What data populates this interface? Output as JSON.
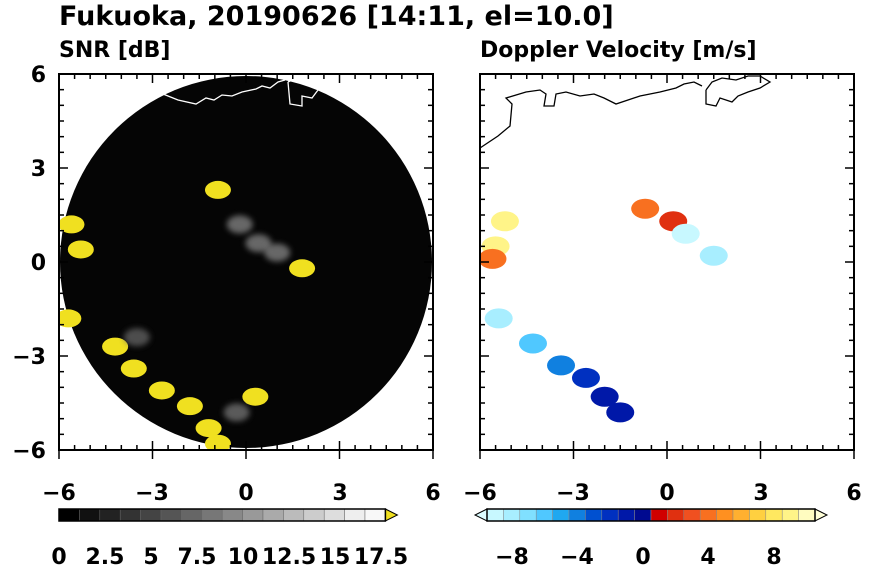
{
  "figure": {
    "title": "Fukuoka, 20190626 [14:11, el=10.0]"
  },
  "chart_data": [
    {
      "type": "heatmap",
      "title": "SNR [dB]",
      "xlabel": "",
      "ylabel": "",
      "xlim": [
        -6,
        6
      ],
      "ylim": [
        -6,
        6
      ],
      "xticks": [
        "−6",
        "−3",
        "0",
        "3",
        "6"
      ],
      "yticks": [
        "6",
        "3",
        "0",
        "−3",
        "−6"
      ],
      "range_circle_radius": 6,
      "colorbar": {
        "min": 0,
        "max": 18.75,
        "step": 1.25,
        "extend": "max",
        "tick_values": [
          0,
          2.5,
          5,
          7.5,
          10,
          12.5,
          15,
          17.5
        ],
        "tick_labels": [
          "0",
          "2.5",
          "5",
          "7.5",
          "10",
          "12.5",
          "15",
          "17.5"
        ],
        "colors": [
          "#000000",
          "#111111",
          "#222222",
          "#333333",
          "#444444",
          "#555555",
          "#666666",
          "#777777",
          "#888888",
          "#999999",
          "#aaaaaa",
          "#bbbbbb",
          "#cccccc",
          "#dddddd",
          "#eeeeee",
          "#f8f8f8"
        ],
        "extend_color": "#f0e020"
      },
      "echoes": [
        {
          "x": -5.6,
          "y": 1.2,
          "v": 19
        },
        {
          "x": -5.3,
          "y": 0.4,
          "v": 19
        },
        {
          "x": -5.7,
          "y": -1.8,
          "v": 19
        },
        {
          "x": -4.2,
          "y": -2.7,
          "v": 19
        },
        {
          "x": -3.6,
          "y": -3.4,
          "v": 19
        },
        {
          "x": -2.7,
          "y": -4.1,
          "v": 19
        },
        {
          "x": -1.8,
          "y": -4.6,
          "v": 19
        },
        {
          "x": -1.2,
          "y": -5.3,
          "v": 19
        },
        {
          "x": -0.9,
          "y": -5.8,
          "v": 19
        },
        {
          "x": 0.3,
          "y": -4.3,
          "v": 19
        },
        {
          "x": -0.9,
          "y": 2.3,
          "v": 19
        },
        {
          "x": 1.8,
          "y": -0.2,
          "v": 19
        },
        {
          "x": -0.2,
          "y": 1.2,
          "v": 11
        },
        {
          "x": 0.4,
          "y": 0.6,
          "v": 10
        },
        {
          "x": 1.0,
          "y": 0.3,
          "v": 11
        },
        {
          "x": -3.5,
          "y": -2.4,
          "v": 8
        },
        {
          "x": -0.3,
          "y": -4.8,
          "v": 9
        }
      ]
    },
    {
      "type": "heatmap",
      "title": "Doppler Velocity [m/s]",
      "xlabel": "",
      "ylabel": "",
      "xlim": [
        -6,
        6
      ],
      "ylim": [
        -6,
        6
      ],
      "xticks": [
        "−6",
        "−3",
        "0",
        "3",
        "6"
      ],
      "yticks": [],
      "colorbar": {
        "min": -10,
        "max": 10,
        "step": 1,
        "extend": "both",
        "tick_values": [
          -8,
          -4,
          0,
          4,
          8
        ],
        "tick_labels": [
          "−8",
          "−4",
          "0",
          "4",
          "8"
        ],
        "colors": [
          "#c8f8ff",
          "#a8eeff",
          "#80e0ff",
          "#50c8ff",
          "#20a8f0",
          "#1080e0",
          "#0050d0",
          "#0030c0",
          "#0018a8",
          "#000a90",
          "#d00000",
          "#e03010",
          "#f05020",
          "#f87020",
          "#ff9020",
          "#ffb030",
          "#ffd040",
          "#ffe860",
          "#fff488",
          "#fffcc0"
        ],
        "extend_low_color": "#dcfcff",
        "extend_high_color": "#ffffd8"
      },
      "echoes": [
        {
          "x": -5.2,
          "y": 1.3,
          "v": 8.5
        },
        {
          "x": -5.5,
          "y": 0.5,
          "v": 8
        },
        {
          "x": -5.6,
          "y": 0.1,
          "v": 3
        },
        {
          "x": -0.7,
          "y": 1.7,
          "v": 3
        },
        {
          "x": 0.2,
          "y": 1.3,
          "v": 1
        },
        {
          "x": 0.6,
          "y": 0.9,
          "v": -9.5
        },
        {
          "x": 1.5,
          "y": 0.2,
          "v": -9
        },
        {
          "x": -5.4,
          "y": -1.8,
          "v": -8.5
        },
        {
          "x": -4.3,
          "y": -2.6,
          "v": -7
        },
        {
          "x": -3.4,
          "y": -3.3,
          "v": -5
        },
        {
          "x": -2.6,
          "y": -3.7,
          "v": -3
        },
        {
          "x": -2.0,
          "y": -4.3,
          "v": -2
        },
        {
          "x": -1.5,
          "y": -4.8,
          "v": -1.5
        }
      ]
    }
  ]
}
